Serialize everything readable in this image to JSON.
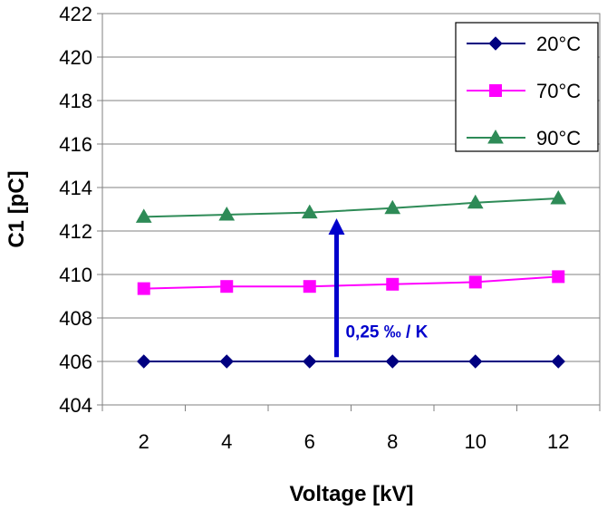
{
  "chart_data": {
    "type": "line",
    "x": [
      2,
      4,
      6,
      8,
      10,
      12
    ],
    "xlabel": "Voltage [kV]",
    "ylabel": "C1 [pC]",
    "xticks": [
      "2",
      "4",
      "6",
      "8",
      "10",
      "12"
    ],
    "yticks": [
      "404",
      "406",
      "408",
      "410",
      "412",
      "414",
      "416",
      "418",
      "420",
      "422"
    ],
    "ylim": [
      404,
      422
    ],
    "xlim": [
      1,
      13
    ],
    "grid": "horizontal",
    "legend_position": "top-right",
    "series": [
      {
        "name": "20°C",
        "color": "#000080",
        "marker": "diamond",
        "values": [
          406.0,
          406.0,
          406.0,
          406.0,
          406.0,
          406.0
        ]
      },
      {
        "name": "70°C",
        "color": "#ff00ff",
        "marker": "square",
        "values": [
          409.35,
          409.45,
          409.45,
          409.55,
          409.65,
          409.9
        ]
      },
      {
        "name": "90°C",
        "color": "#2e8b57",
        "marker": "triangle",
        "values": [
          412.65,
          412.75,
          412.85,
          413.05,
          413.3,
          413.5
        ]
      }
    ],
    "annotation": {
      "text": "0,25 ‰ / K",
      "color": "#0000cc",
      "arrow_x": 6.65,
      "arrow_from_y": 406.2,
      "arrow_to_y": 412.5
    }
  }
}
